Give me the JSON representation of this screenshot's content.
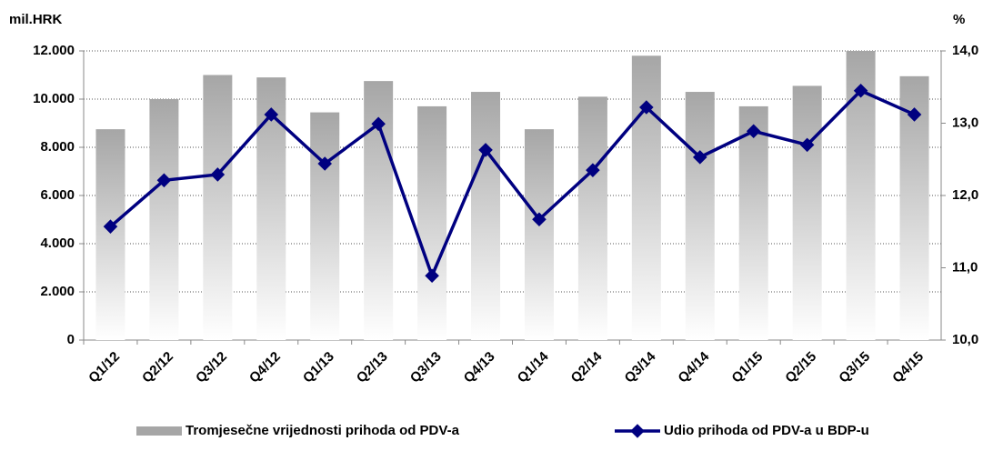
{
  "chart_data": {
    "type": "bar_line",
    "y_label": "mil.HRK",
    "y2_label": "%",
    "categories": [
      "Q1/12",
      "Q2/12",
      "Q3/12",
      "Q4/12",
      "Q1/13",
      "Q2/13",
      "Q3/13",
      "Q4/13",
      "Q1/14",
      "Q2/14",
      "Q3/14",
      "Q4/14",
      "Q1/15",
      "Q2/15",
      "Q3/15",
      "Q4/15"
    ],
    "series": [
      {
        "name": "Tromjesečne vrijednosti prihoda od PDV-a",
        "color": "#a6a6a6",
        "type": "bar",
        "values": [
          8750,
          10000,
          11000,
          10900,
          9450,
          10750,
          9700,
          10300,
          8750,
          10100,
          11800,
          10300,
          9700,
          10550,
          12000,
          10950
        ]
      },
      {
        "name": "Udio prihoda od PDV-a u BDP-u",
        "color": "#000080",
        "type": "line",
        "axis": "y2",
        "values": [
          11.57,
          12.21,
          12.29,
          13.12,
          12.44,
          12.99,
          10.89,
          12.63,
          11.67,
          12.35,
          13.22,
          12.53,
          12.89,
          12.7,
          13.45,
          13.12
        ]
      }
    ],
    "ylim": [
      0,
      12000
    ],
    "yticks": [
      {
        "value": 0,
        "label": "0"
      },
      {
        "value": 2000,
        "label": "2.000"
      },
      {
        "value": 4000,
        "label": "4.000"
      },
      {
        "value": 6000,
        "label": "6.000"
      },
      {
        "value": 8000,
        "label": "8.000"
      },
      {
        "value": 10000,
        "label": "10.000"
      },
      {
        "value": 12000,
        "label": "12.000"
      }
    ],
    "y2lim": [
      10,
      14
    ],
    "y2ticks": [
      {
        "value": 10,
        "label": "10,0"
      },
      {
        "value": 11,
        "label": "11,0"
      },
      {
        "value": 12,
        "label": "12,0"
      },
      {
        "value": 13,
        "label": "13,0"
      },
      {
        "value": 14,
        "label": "14,0"
      }
    ],
    "grid": true,
    "legend": "bottom"
  }
}
